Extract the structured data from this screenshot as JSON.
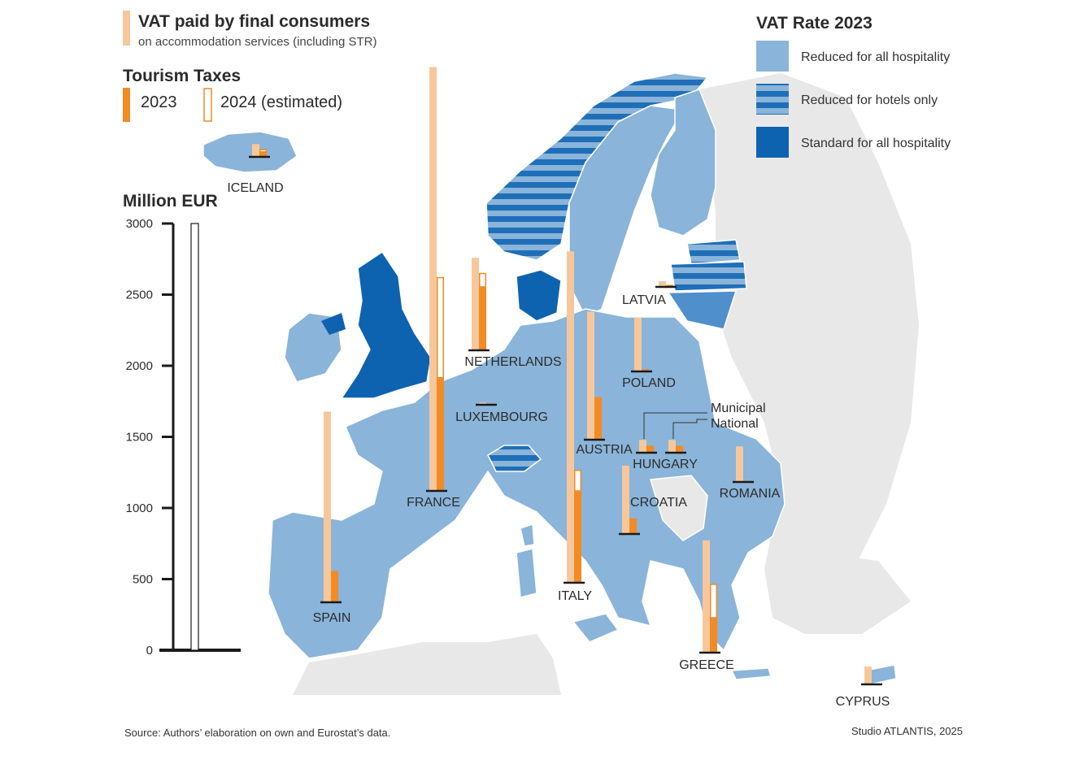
{
  "legend": {
    "vat_paid": {
      "title": "VAT paid by final consumers",
      "subtitle": "on accommodation services (including STR)"
    },
    "tourism_taxes": {
      "title": "Tourism Taxes",
      "year_2023": "2023",
      "year_2024": "2024 (estimated)"
    },
    "vat_rate": {
      "title": "VAT Rate 2023",
      "items": [
        {
          "label": "Reduced for all hospitality",
          "style": "solid-light"
        },
        {
          "label": "Reduced for hotels only",
          "style": "striped"
        },
        {
          "label": "Standard for all hospitality",
          "style": "solid-dark"
        }
      ]
    }
  },
  "scale": {
    "title": "Million EUR",
    "ticks": [
      "3000",
      "2500",
      "2000",
      "1500",
      "1000",
      "500",
      "0"
    ]
  },
  "colors": {
    "vat_paid": "#f7c79c",
    "tax_2023": "#f28b24",
    "tax_2024_outline": "#f28b24",
    "reduced_all": "#8ab4d9",
    "standard": "#0e63b0",
    "stripe_dark": "#1f6fb8",
    "non_eu": "#e8e8e8",
    "baseline": "#1a1a1a"
  },
  "hungary_annotation": {
    "municipal": "Municipal",
    "national": "National"
  },
  "chart_data": {
    "type": "bar",
    "title": "",
    "ylabel": "Million EUR",
    "ylim": [
      0,
      3000
    ],
    "countries": [
      {
        "name": "ICELAND",
        "vat": 90,
        "tax_2023": 40,
        "tax_2024": 50
      },
      {
        "name": "LATVIA",
        "vat": 40,
        "tax_2023": 10,
        "tax_2024": 10
      },
      {
        "name": "NETHERLANDS",
        "vat": 650,
        "tax_2023": 450,
        "tax_2024": 540
      },
      {
        "name": "POLAND",
        "vat": 380,
        "tax_2023": 15,
        "tax_2024": 0
      },
      {
        "name": "LUXEMBOURG",
        "vat": 15,
        "tax_2023": 5,
        "tax_2024": 0
      },
      {
        "name": "FRANCE",
        "vat": 2980,
        "tax_2023": 800,
        "tax_2024": 1500
      },
      {
        "name": "AUSTRIA",
        "vat": 900,
        "tax_2023": 300,
        "tax_2024": 0
      },
      {
        "name": "HUNGARY (Municipal)",
        "vat": 90,
        "tax_2023": 50,
        "tax_2024": 0
      },
      {
        "name": "HUNGARY (National)",
        "vat": 90,
        "tax_2023": 50,
        "tax_2024": 0
      },
      {
        "name": "ROMANIA",
        "vat": 250,
        "tax_2023": 5,
        "tax_2024": 0
      },
      {
        "name": "CROATIA",
        "vat": 480,
        "tax_2023": 110,
        "tax_2024": 0
      },
      {
        "name": "SPAIN",
        "vat": 1340,
        "tax_2023": 220,
        "tax_2024": 0
      },
      {
        "name": "ITALY",
        "vat": 2330,
        "tax_2023": 650,
        "tax_2024": 790
      },
      {
        "name": "GREECE",
        "vat": 790,
        "tax_2023": 250,
        "tax_2024": 480
      },
      {
        "name": "CYPRUS",
        "vat": 125,
        "tax_2023": 5,
        "tax_2024": 0
      }
    ]
  },
  "footer": {
    "source": "Source: Authors’ elaboration on own and Eurostat’s data.",
    "credit": "Studio ATLANTIS, 2025"
  }
}
